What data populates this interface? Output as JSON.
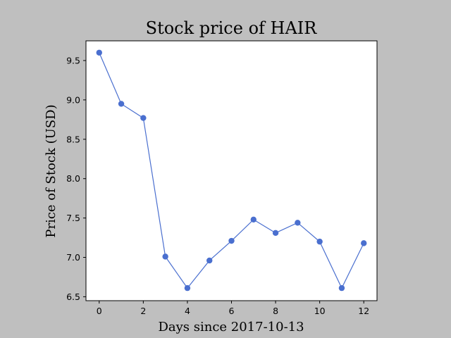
{
  "chart_data": {
    "type": "line",
    "title": "Stock price of HAIR",
    "xlabel": "Days since 2017-10-13",
    "ylabel": "Price of Stock (USD)",
    "x": [
      0,
      1,
      2,
      3,
      4,
      5,
      6,
      7,
      8,
      9,
      10,
      11,
      12
    ],
    "series": [
      {
        "values": [
          9.6,
          8.95,
          8.77,
          7.01,
          6.61,
          6.96,
          7.21,
          7.48,
          7.31,
          7.44,
          7.2,
          6.61,
          7.18
        ],
        "color": "#4a6fcf"
      }
    ],
    "xlim": [
      -0.6,
      12.6
    ],
    "ylim": [
      6.45,
      9.75
    ],
    "xticks": [
      0,
      2,
      4,
      6,
      8,
      10,
      12
    ],
    "xtick_labels": [
      "0",
      "2",
      "4",
      "6",
      "8",
      "10",
      "12"
    ],
    "yticks": [
      6.5,
      7.0,
      7.5,
      8.0,
      8.5,
      9.0,
      9.5
    ],
    "ytick_labels": [
      "6.5",
      "7.0",
      "7.5",
      "8.0",
      "8.5",
      "9.0",
      "9.5"
    ],
    "grid": false,
    "legend": "none",
    "colors": {
      "figure_background": "#bfbfbf",
      "plot_background": "#ffffff",
      "line": "#4a6fcf"
    }
  }
}
